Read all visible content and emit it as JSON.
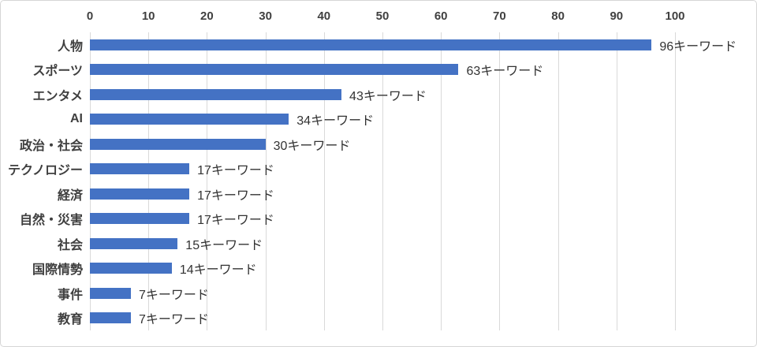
{
  "chart_data": {
    "type": "bar",
    "orientation": "horizontal",
    "title": "",
    "xlabel": "",
    "ylabel": "",
    "categories": [
      "人物",
      "スポーツ",
      "エンタメ",
      "AI",
      "政治・社会",
      "テクノロジー",
      "経済",
      "自然・災害",
      "社会",
      "国際情勢",
      "事件",
      "教育"
    ],
    "values": [
      96,
      63,
      43,
      34,
      30,
      17,
      17,
      17,
      15,
      14,
      7,
      7
    ],
    "data_labels": [
      "96キーワード",
      "63キーワード",
      "43キーワード",
      "34キーワード",
      "30キーワード",
      "17キーワード",
      "17キーワード",
      "17キーワード",
      "15キーワード",
      "14キーワード",
      "7キーワード",
      "7キーワード"
    ],
    "value_unit": "キーワード",
    "x_ticks": [
      0,
      10,
      20,
      30,
      40,
      50,
      60,
      70,
      80,
      90,
      100
    ],
    "xlim": [
      0,
      100
    ],
    "grid": "vertical-on",
    "legend": "none",
    "colors": {
      "bar": "#4472c4",
      "gridline": "#d9d9d9",
      "axis_text": "#404040",
      "category_text": "#3f3f3f",
      "data_label_text": "#333333",
      "background": "#ffffff",
      "frame_border": "#d6d6d6"
    }
  }
}
